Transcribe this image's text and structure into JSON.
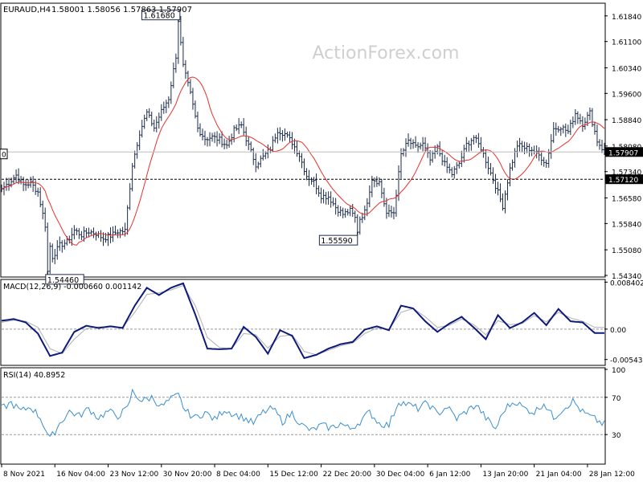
{
  "header": {
    "symbol": "EURAUD,H4",
    "ohlc": "1.58001 1.58056 1.57863 1.57907"
  },
  "watermark": "ActionForex.com",
  "colors": {
    "background": "#ffffff",
    "bar": "#1a2a4a",
    "ma": "#e8302a",
    "macd": "#0e1a7a",
    "signal": "#b0b0b0",
    "rsi": "#3b8fcf",
    "grid": "#cfcfcf",
    "text": "#000000"
  },
  "chart_data": [
    {
      "type": "ohlc",
      "name": "price",
      "ylim": [
        1.5434,
        1.6216
      ],
      "ticks": [
        "1.61840",
        "1.61100",
        "1.60340",
        "1.59600",
        "1.58840",
        "1.58080",
        "1.57340",
        "1.56580",
        "1.55840",
        "1.55080",
        "1.54340"
      ],
      "tick_values": [
        1.6184,
        1.611,
        1.6034,
        1.596,
        1.5884,
        1.5808,
        1.5734,
        1.5658,
        1.5584,
        1.5508,
        1.5434
      ],
      "current_price": 1.57907,
      "current_price_label": "1.57907",
      "level_line": 1.5712,
      "level_line_label": "1.57120",
      "left_marker": "0",
      "annotations": [
        {
          "label": "1.61680",
          "value": 1.6168,
          "bar": 73
        },
        {
          "label": "1.55590",
          "value": 1.5559,
          "bar": 147
        },
        {
          "label": "1.54460",
          "value": 1.5446,
          "bar": 19
        }
      ],
      "close_path": [
        [
          0,
          1.5684
        ],
        [
          3,
          1.5702
        ],
        [
          6,
          1.5724
        ],
        [
          9,
          1.5695
        ],
        [
          12,
          1.5701
        ],
        [
          15,
          1.5675
        ],
        [
          18,
          1.5579
        ],
        [
          21,
          1.5488
        ],
        [
          24,
          1.5521
        ],
        [
          27,
          1.5531
        ],
        [
          30,
          1.5564
        ],
        [
          33,
          1.5551
        ],
        [
          36,
          1.5561
        ],
        [
          39,
          1.5555
        ],
        [
          42,
          1.5541
        ],
        [
          45,
          1.5549
        ],
        [
          48,
          1.5561
        ],
        [
          51,
          1.5563
        ],
        [
          54,
          1.5754
        ],
        [
          57,
          1.5847
        ],
        [
          60,
          1.5904
        ],
        [
          63,
          1.5861
        ],
        [
          66,
          1.5908
        ],
        [
          69,
          1.5946
        ],
        [
          72,
          1.6068
        ],
        [
          73,
          1.6168
        ],
        [
          75,
          1.6038
        ],
        [
          78,
          1.5958
        ],
        [
          81,
          1.5859
        ],
        [
          84,
          1.5829
        ],
        [
          87,
          1.5834
        ],
        [
          90,
          1.5826
        ],
        [
          93,
          1.5809
        ],
        [
          96,
          1.5853
        ],
        [
          99,
          1.5868
        ],
        [
          102,
          1.5809
        ],
        [
          105,
          1.5755
        ],
        [
          108,
          1.5776
        ],
        [
          111,
          1.5801
        ],
        [
          114,
          1.5854
        ],
        [
          117,
          1.5843
        ],
        [
          120,
          1.5818
        ],
        [
          123,
          1.5781
        ],
        [
          126,
          1.5722
        ],
        [
          129,
          1.5704
        ],
        [
          132,
          1.5664
        ],
        [
          135,
          1.5662
        ],
        [
          138,
          1.5631
        ],
        [
          141,
          1.5611
        ],
        [
          144,
          1.5621
        ],
        [
          147,
          1.5589
        ],
        [
          150,
          1.5617
        ],
        [
          153,
          1.5714
        ],
        [
          156,
          1.5703
        ],
        [
          159,
          1.5613
        ],
        [
          162,
          1.5616
        ],
        [
          165,
          1.5783
        ],
        [
          168,
          1.5822
        ],
        [
          171,
          1.5804
        ],
        [
          174,
          1.5813
        ],
        [
          177,
          1.5767
        ],
        [
          180,
          1.5802
        ],
        [
          183,
          1.5755
        ],
        [
          186,
          1.5727
        ],
        [
          189,
          1.5758
        ],
        [
          192,
          1.5812
        ],
        [
          195,
          1.5833
        ],
        [
          198,
          1.5802
        ],
        [
          201,
          1.5748
        ],
        [
          204,
          1.5693
        ],
        [
          207,
          1.5635
        ],
        [
          210,
          1.5742
        ],
        [
          213,
          1.5811
        ],
        [
          216,
          1.5803
        ],
        [
          219,
          1.5798
        ],
        [
          222,
          1.5781
        ],
        [
          225,
          1.5758
        ],
        [
          228,
          1.5858
        ],
        [
          231,
          1.5864
        ],
        [
          234,
          1.5849
        ],
        [
          237,
          1.5903
        ],
        [
          240,
          1.5872
        ],
        [
          243,
          1.5904
        ],
        [
          246,
          1.5823
        ],
        [
          249,
          1.5791
        ]
      ]
    },
    {
      "type": "line",
      "name": "MACD(12,26,9)",
      "label": "MACD(12,26,9) -0.000660 0.001142",
      "ylim": [
        -0.0062,
        0.0086
      ],
      "ticks": [
        "0.008402",
        "0.00",
        "-0.005436"
      ],
      "tick_values": [
        0.008402,
        0.0,
        -0.005436
      ],
      "current_value_label": "0.00",
      "macd": [
        [
          0,
          0.0015
        ],
        [
          5,
          0.0018
        ],
        [
          10,
          0.0012
        ],
        [
          15,
          -0.0008
        ],
        [
          20,
          -0.0048
        ],
        [
          25,
          -0.0042
        ],
        [
          30,
          -0.0005
        ],
        [
          35,
          0.0006
        ],
        [
          40,
          0.0002
        ],
        [
          45,
          0.0005
        ],
        [
          50,
          0.0002
        ],
        [
          55,
          0.0042
        ],
        [
          60,
          0.0074
        ],
        [
          65,
          0.0061
        ],
        [
          70,
          0.0074
        ],
        [
          75,
          0.0082
        ],
        [
          80,
          0.0026
        ],
        [
          85,
          -0.0035
        ],
        [
          90,
          -0.0036
        ],
        [
          95,
          -0.0035
        ],
        [
          100,
          0.0004
        ],
        [
          105,
          -0.0014
        ],
        [
          110,
          -0.0044
        ],
        [
          115,
          -0.0002
        ],
        [
          120,
          -0.0012
        ],
        [
          125,
          -0.0052
        ],
        [
          130,
          -0.0046
        ],
        [
          135,
          -0.0035
        ],
        [
          140,
          -0.0027
        ],
        [
          145,
          -0.0023
        ],
        [
          150,
          -0.0001
        ],
        [
          155,
          0.0005
        ],
        [
          160,
          -0.0002
        ],
        [
          165,
          0.0042
        ],
        [
          170,
          0.0037
        ],
        [
          175,
          0.0014
        ],
        [
          180,
          -0.0005
        ],
        [
          185,
          0.001
        ],
        [
          190,
          0.0022
        ],
        [
          195,
          0.0003
        ],
        [
          200,
          -0.0018
        ],
        [
          205,
          0.0025
        ],
        [
          210,
          0.0002
        ],
        [
          215,
          0.0012
        ],
        [
          220,
          0.0029
        ],
        [
          225,
          0.0007
        ],
        [
          230,
          0.0036
        ],
        [
          235,
          0.0014
        ],
        [
          240,
          0.0012
        ],
        [
          245,
          -0.0007
        ]
      ],
      "signal": [
        [
          0,
          0.0012
        ],
        [
          5,
          0.0016
        ],
        [
          10,
          0.0014
        ],
        [
          15,
          0.0003
        ],
        [
          20,
          -0.0035
        ],
        [
          25,
          -0.0044
        ],
        [
          30,
          -0.0018
        ],
        [
          35,
          0.0001
        ],
        [
          40,
          0.0004
        ],
        [
          45,
          0.0004
        ],
        [
          50,
          0.0003
        ],
        [
          55,
          0.003
        ],
        [
          60,
          0.0062
        ],
        [
          65,
          0.0065
        ],
        [
          70,
          0.007
        ],
        [
          75,
          0.0078
        ],
        [
          80,
          0.0042
        ],
        [
          85,
          -0.0015
        ],
        [
          90,
          -0.0033
        ],
        [
          95,
          -0.0035
        ],
        [
          100,
          -0.0008
        ],
        [
          105,
          -0.001
        ],
        [
          110,
          -0.0034
        ],
        [
          115,
          -0.0013
        ],
        [
          120,
          -0.001
        ],
        [
          125,
          -0.004
        ],
        [
          130,
          -0.0046
        ],
        [
          135,
          -0.0038
        ],
        [
          140,
          -0.003
        ],
        [
          145,
          -0.0025
        ],
        [
          150,
          -0.0008
        ],
        [
          155,
          0.0002
        ],
        [
          160,
          0.0
        ],
        [
          165,
          0.003
        ],
        [
          170,
          0.0037
        ],
        [
          175,
          0.0022
        ],
        [
          180,
          0.0003
        ],
        [
          185,
          0.0007
        ],
        [
          190,
          0.0018
        ],
        [
          195,
          0.0008
        ],
        [
          200,
          -0.001
        ],
        [
          205,
          0.0015
        ],
        [
          210,
          0.0008
        ],
        [
          215,
          0.001
        ],
        [
          220,
          0.0024
        ],
        [
          225,
          0.0013
        ],
        [
          230,
          0.003
        ],
        [
          235,
          0.002
        ],
        [
          240,
          0.0014
        ],
        [
          245,
          0.0003
        ]
      ]
    },
    {
      "type": "line",
      "name": "RSI(14)",
      "label": "RSI(14) 40.8952",
      "ylim": [
        0,
        100
      ],
      "ticks": [
        "100",
        "70",
        "30"
      ],
      "tick_values": [
        100,
        70,
        30
      ],
      "levels": [
        70,
        30
      ],
      "values": [
        [
          0,
          58
        ],
        [
          4,
          64
        ],
        [
          8,
          55
        ],
        [
          12,
          60
        ],
        [
          16,
          48
        ],
        [
          20,
          25
        ],
        [
          24,
          42
        ],
        [
          28,
          55
        ],
        [
          32,
          50
        ],
        [
          36,
          58
        ],
        [
          40,
          48
        ],
        [
          44,
          55
        ],
        [
          48,
          50
        ],
        [
          52,
          58
        ],
        [
          54,
          76
        ],
        [
          58,
          66
        ],
        [
          62,
          70
        ],
        [
          66,
          60
        ],
        [
          70,
          68
        ],
        [
          73,
          72
        ],
        [
          76,
          55
        ],
        [
          80,
          48
        ],
        [
          84,
          54
        ],
        [
          88,
          46
        ],
        [
          92,
          57
        ],
        [
          96,
          52
        ],
        [
          100,
          48
        ],
        [
          104,
          42
        ],
        [
          108,
          54
        ],
        [
          112,
          58
        ],
        [
          116,
          44
        ],
        [
          120,
          53
        ],
        [
          124,
          40
        ],
        [
          128,
          34
        ],
        [
          132,
          40
        ],
        [
          136,
          37
        ],
        [
          140,
          42
        ],
        [
          144,
          36
        ],
        [
          148,
          44
        ],
        [
          152,
          54
        ],
        [
          156,
          42
        ],
        [
          160,
          40
        ],
        [
          164,
          66
        ],
        [
          168,
          62
        ],
        [
          172,
          58
        ],
        [
          176,
          64
        ],
        [
          180,
          52
        ],
        [
          184,
          60
        ],
        [
          188,
          47
        ],
        [
          192,
          55
        ],
        [
          196,
          62
        ],
        [
          200,
          48
        ],
        [
          204,
          36
        ],
        [
          208,
          58
        ],
        [
          212,
          66
        ],
        [
          216,
          58
        ],
        [
          220,
          54
        ],
        [
          224,
          64
        ],
        [
          228,
          48
        ],
        [
          232,
          58
        ],
        [
          236,
          66
        ],
        [
          240,
          54
        ],
        [
          244,
          48
        ],
        [
          248,
          42
        ],
        [
          249,
          41
        ]
      ]
    }
  ],
  "x_axis": {
    "ticks": [
      "8 Nov 2021",
      "16 Nov 04:00",
      "23 Nov 12:00",
      "30 Nov 20:00",
      "8 Dec 04:00",
      "15 Dec 12:00",
      "22 Dec 20:00",
      "30 Dec 04:00",
      "6 Jan 12:00",
      "13 Jan 20:00",
      "21 Jan 04:00",
      "28 Jan 12:00"
    ],
    "tick_bars": [
      0,
      22,
      44,
      66,
      88,
      110,
      132,
      154,
      176,
      198,
      220,
      242
    ]
  }
}
